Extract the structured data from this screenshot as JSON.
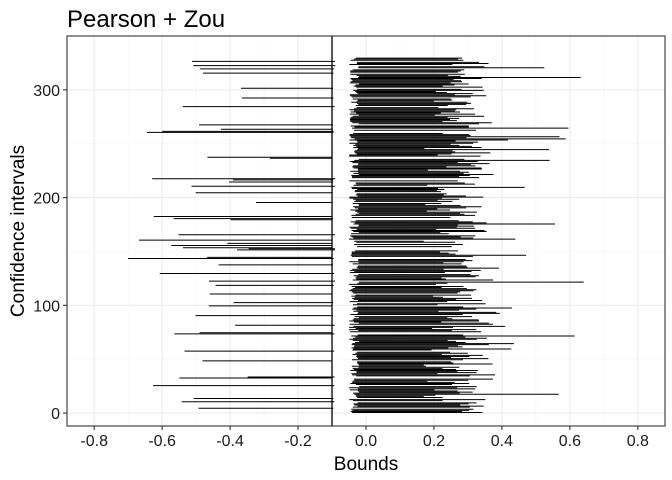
{
  "chart_data": {
    "type": "interval",
    "title": "Pearson + Zou",
    "xlabel": "Bounds",
    "ylabel": "Confidence intervals",
    "xlim": [
      -0.88,
      0.88
    ],
    "ylim": [
      -12,
      350
    ],
    "x_ticks": [
      -0.8,
      -0.6,
      -0.4,
      -0.2,
      0.0,
      0.2,
      0.4,
      0.6,
      0.8
    ],
    "x_tick_labels": [
      "-0.8",
      "-0.6",
      "-0.4",
      "-0.2",
      "0.0",
      "0.2",
      "0.4",
      "0.6",
      "0.8"
    ],
    "y_ticks": [
      0,
      100,
      200,
      300
    ],
    "y_tick_labels": [
      "0",
      "100",
      "200",
      "300"
    ],
    "reference_line_x": -0.1,
    "n_intervals": 330,
    "interval_lower_range": [
      -0.7,
      -0.08
    ],
    "interval_upper_range": [
      0.17,
      0.65
    ],
    "grid": true,
    "legend": "none",
    "colors": {
      "segment": "#000000",
      "panel_border": "#333333",
      "grid_major": "#ebebeb",
      "grid_minor": "#f5f5f5"
    }
  }
}
